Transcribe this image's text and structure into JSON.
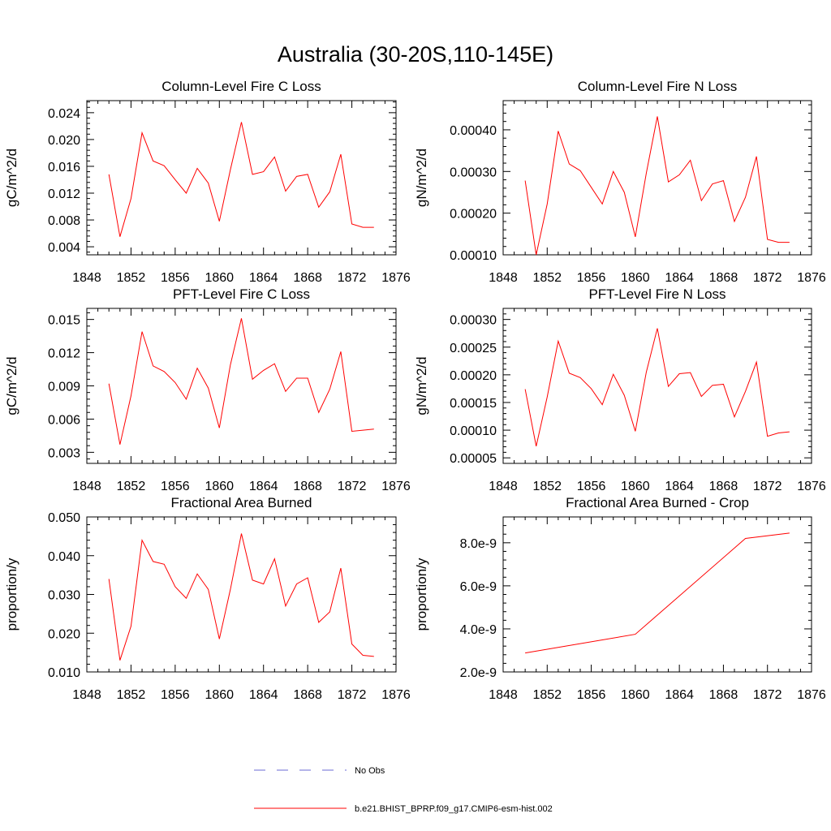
{
  "title": "Australia (30-20S,110-145E)",
  "legend": {
    "entries": [
      {
        "label": "No Obs",
        "color": "#6b6bd6",
        "style": "dashed"
      },
      {
        "label": "b.e21.BHIST_BPRP.f09_g17.CMIP6-esm-hist.002",
        "color": "#ff0000",
        "style": "solid"
      }
    ]
  },
  "chart_data": [
    {
      "type": "line",
      "title": "Column-Level Fire C Loss",
      "ylabel": "gC/m^2/d",
      "xlim": [
        1848,
        1876
      ],
      "ylim": [
        0.0028,
        0.0258
      ],
      "xticks": [
        1848,
        1852,
        1856,
        1860,
        1864,
        1868,
        1872,
        1876
      ],
      "xtick_labels": [
        "1848",
        "1852",
        "1856",
        "1860",
        "1864",
        "1868",
        "1872",
        "1876"
      ],
      "yticks": [
        0.004,
        0.008,
        0.012,
        0.016,
        0.02,
        0.024
      ],
      "ytick_labels": [
        "0.004",
        "0.008",
        "0.012",
        "0.016",
        "0.020",
        "0.024"
      ],
      "series": [
        {
          "color": "#ff0000",
          "x": [
            1850,
            1851,
            1852,
            1853,
            1854,
            1855,
            1856,
            1857,
            1858,
            1859,
            1860,
            1861,
            1862,
            1863,
            1864,
            1865,
            1866,
            1867,
            1868,
            1869,
            1870,
            1871,
            1872,
            1873,
            1874
          ],
          "y": [
            0.0148,
            0.0055,
            0.0112,
            0.021,
            0.0168,
            0.0161,
            0.014,
            0.012,
            0.0157,
            0.0135,
            0.0078,
            0.0155,
            0.0226,
            0.0148,
            0.0152,
            0.0174,
            0.0123,
            0.0145,
            0.0148,
            0.0099,
            0.0122,
            0.0178,
            0.0074,
            0.0069,
            0.0069
          ]
        }
      ]
    },
    {
      "type": "line",
      "title": "Column-Level Fire N Loss",
      "ylabel": "gN/m^2/d",
      "xlim": [
        1848,
        1876
      ],
      "ylim": [
        0.0001,
        0.00047
      ],
      "xticks": [
        1848,
        1852,
        1856,
        1860,
        1864,
        1868,
        1872,
        1876
      ],
      "xtick_labels": [
        "1848",
        "1852",
        "1856",
        "1860",
        "1864",
        "1868",
        "1872",
        "1876"
      ],
      "yticks": [
        0.0001,
        0.0002,
        0.0003,
        0.0004
      ],
      "ytick_labels": [
        "0.00010",
        "0.00020",
        "0.00030",
        "0.00040"
      ],
      "series": [
        {
          "color": "#ff0000",
          "x": [
            1850,
            1851,
            1852,
            1853,
            1854,
            1855,
            1856,
            1857,
            1858,
            1859,
            1860,
            1861,
            1862,
            1863,
            1864,
            1865,
            1866,
            1867,
            1868,
            1869,
            1870,
            1871,
            1872,
            1873,
            1874
          ],
          "y": [
            0.000278,
            0.0001,
            0.000222,
            0.000397,
            0.000318,
            0.000302,
            0.000262,
            0.000222,
            0.0003,
            0.00025,
            0.000143,
            0.000296,
            0.000432,
            0.000275,
            0.000292,
            0.000327,
            0.00023,
            0.00027,
            0.000278,
            0.00018,
            0.000238,
            0.000336,
            0.000137,
            0.00013,
            0.00013
          ]
        }
      ]
    },
    {
      "type": "line",
      "title": "PFT-Level Fire C Loss",
      "ylabel": "gC/m^2/d",
      "xlim": [
        1848,
        1876
      ],
      "ylim": [
        0.002,
        0.016
      ],
      "xticks": [
        1848,
        1852,
        1856,
        1860,
        1864,
        1868,
        1872,
        1876
      ],
      "xtick_labels": [
        "1848",
        "1852",
        "1856",
        "1860",
        "1864",
        "1868",
        "1872",
        "1876"
      ],
      "yticks": [
        0.003,
        0.006,
        0.009,
        0.012,
        0.015
      ],
      "ytick_labels": [
        "0.003",
        "0.006",
        "0.009",
        "0.012",
        "0.015"
      ],
      "series": [
        {
          "color": "#ff0000",
          "x": [
            1850,
            1851,
            1852,
            1853,
            1854,
            1855,
            1856,
            1857,
            1858,
            1859,
            1860,
            1861,
            1862,
            1863,
            1864,
            1865,
            1866,
            1867,
            1868,
            1869,
            1870,
            1871,
            1872,
            1873,
            1874
          ],
          "y": [
            0.0092,
            0.0037,
            0.0081,
            0.0139,
            0.0108,
            0.0103,
            0.0093,
            0.0078,
            0.0106,
            0.0088,
            0.0052,
            0.0109,
            0.0151,
            0.0096,
            0.0104,
            0.011,
            0.0085,
            0.0097,
            0.0097,
            0.0066,
            0.0087,
            0.0121,
            0.0049,
            0.005,
            0.0051
          ]
        }
      ]
    },
    {
      "type": "line",
      "title": "PFT-Level Fire N Loss",
      "ylabel": "gN/m^2/d",
      "xlim": [
        1848,
        1876
      ],
      "ylim": [
        4e-05,
        0.00032
      ],
      "xticks": [
        1848,
        1852,
        1856,
        1860,
        1864,
        1868,
        1872,
        1876
      ],
      "xtick_labels": [
        "1848",
        "1852",
        "1856",
        "1860",
        "1864",
        "1868",
        "1872",
        "1876"
      ],
      "yticks": [
        5e-05,
        0.0001,
        0.00015,
        0.0002,
        0.00025,
        0.0003
      ],
      "ytick_labels": [
        "0.00005",
        "0.00010",
        "0.00015",
        "0.00020",
        "0.00025",
        "0.00030"
      ],
      "series": [
        {
          "color": "#ff0000",
          "x": [
            1850,
            1851,
            1852,
            1853,
            1854,
            1855,
            1856,
            1857,
            1858,
            1859,
            1860,
            1861,
            1862,
            1863,
            1864,
            1865,
            1866,
            1867,
            1868,
            1869,
            1870,
            1871,
            1872,
            1873,
            1874
          ],
          "y": [
            0.000174,
            7.1e-05,
            0.00016,
            0.000261,
            0.000203,
            0.000195,
            0.000175,
            0.000146,
            0.000201,
            0.000163,
            9.8e-05,
            0.000205,
            0.000284,
            0.000179,
            0.000202,
            0.000204,
            0.000161,
            0.000181,
            0.000183,
            0.000124,
            0.00017,
            0.000223,
            8.9e-05,
            9.5e-05,
            9.7e-05
          ]
        }
      ]
    },
    {
      "type": "line",
      "title": "Fractional Area Burned",
      "ylabel": "proportion/y",
      "xlim": [
        1848,
        1876
      ],
      "ylim": [
        0.01,
        0.05
      ],
      "xticks": [
        1848,
        1852,
        1856,
        1860,
        1864,
        1868,
        1872,
        1876
      ],
      "xtick_labels": [
        "1848",
        "1852",
        "1856",
        "1860",
        "1864",
        "1868",
        "1872",
        "1876"
      ],
      "yticks": [
        0.01,
        0.02,
        0.03,
        0.04,
        0.05
      ],
      "ytick_labels": [
        "0.010",
        "0.020",
        "0.030",
        "0.040",
        "0.050"
      ],
      "series": [
        {
          "color": "#ff0000",
          "x": [
            1850,
            1851,
            1852,
            1853,
            1854,
            1855,
            1856,
            1857,
            1858,
            1859,
            1860,
            1861,
            1862,
            1863,
            1864,
            1865,
            1866,
            1867,
            1868,
            1869,
            1870,
            1871,
            1872,
            1873,
            1874
          ],
          "y": [
            0.034,
            0.013,
            0.0218,
            0.044,
            0.0385,
            0.0378,
            0.032,
            0.029,
            0.0353,
            0.0313,
            0.0185,
            0.0313,
            0.0457,
            0.0337,
            0.0327,
            0.0392,
            0.027,
            0.0327,
            0.0343,
            0.0228,
            0.0255,
            0.0368,
            0.0172,
            0.0143,
            0.014
          ]
        }
      ]
    },
    {
      "type": "line",
      "title": "Fractional Area Burned - Crop",
      "ylabel": "proportion/y",
      "xlim": [
        1848,
        1876
      ],
      "ylim": [
        2e-09,
        9.2e-09
      ],
      "xticks": [
        1848,
        1852,
        1856,
        1860,
        1864,
        1868,
        1872,
        1876
      ],
      "xtick_labels": [
        "1848",
        "1852",
        "1856",
        "1860",
        "1864",
        "1868",
        "1872",
        "1876"
      ],
      "yticks": [
        2e-09,
        4e-09,
        6e-09,
        8e-09
      ],
      "ytick_labels": [
        "2.0e-9",
        "4.0e-9",
        "6.0e-9",
        "8.0e-9"
      ],
      "series": [
        {
          "color": "#ff0000",
          "x": [
            1850,
            1860,
            1870,
            1874
          ],
          "y": [
            2.88e-09,
            3.75e-09,
            8.2e-09,
            8.45e-09
          ]
        }
      ]
    }
  ]
}
